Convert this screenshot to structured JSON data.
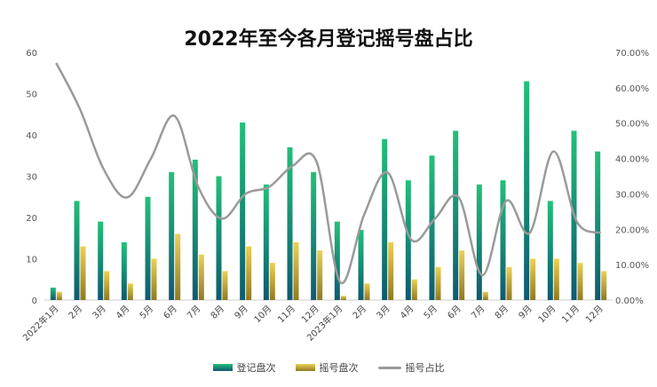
{
  "chart_data": {
    "type": "bar",
    "title": "2022年至今各月登记摇号盘占比",
    "categories": [
      "2022年1月",
      "2月",
      "3月",
      "4月",
      "5月",
      "6月",
      "7月",
      "8月",
      "9月",
      "10月",
      "11月",
      "12月",
      "2023年1月",
      "2月",
      "3月",
      "4月",
      "5月",
      "6月",
      "7月",
      "8月",
      "9月",
      "10月",
      "11月",
      "12月"
    ],
    "series": [
      {
        "name": "登记盘次",
        "kind": "bar",
        "axis": "left",
        "values": [
          3,
          24,
          19,
          14,
          25,
          31,
          34,
          30,
          43,
          28,
          37,
          31,
          19,
          17,
          39,
          29,
          35,
          41,
          28,
          29,
          53,
          24,
          41,
          36
        ]
      },
      {
        "name": "摇号盘次",
        "kind": "bar",
        "axis": "left",
        "values": [
          2,
          13,
          7,
          4,
          10,
          16,
          11,
          7,
          13,
          9,
          14,
          12,
          1,
          4,
          14,
          5,
          8,
          12,
          2,
          8,
          10,
          10,
          9,
          7
        ]
      },
      {
        "name": "摇号占比",
        "kind": "line",
        "axis": "right",
        "values": [
          0.67,
          0.54,
          0.37,
          0.29,
          0.4,
          0.52,
          0.32,
          0.23,
          0.3,
          0.32,
          0.38,
          0.39,
          0.05,
          0.24,
          0.36,
          0.17,
          0.23,
          0.29,
          0.07,
          0.28,
          0.19,
          0.42,
          0.22,
          0.19
        ]
      }
    ],
    "ylim": [
      0,
      60
    ],
    "y_ticks": [
      "0",
      "10",
      "20",
      "30",
      "40",
      "50",
      "60"
    ],
    "y2lim": [
      0,
      0.7
    ],
    "y2_ticks": [
      "0.00%",
      "10.00%",
      "20.00%",
      "30.00%",
      "40.00%",
      "50.00%",
      "60.00%",
      "70.00%"
    ],
    "grid": false,
    "legend": "bottom-center",
    "colors": {
      "bar1_top": "#22c07a",
      "bar1_bottom": "#0d5a70",
      "bar2_top": "#ecd056",
      "bar2_bottom": "#8f7a22",
      "line": "#9a9a9a"
    }
  }
}
